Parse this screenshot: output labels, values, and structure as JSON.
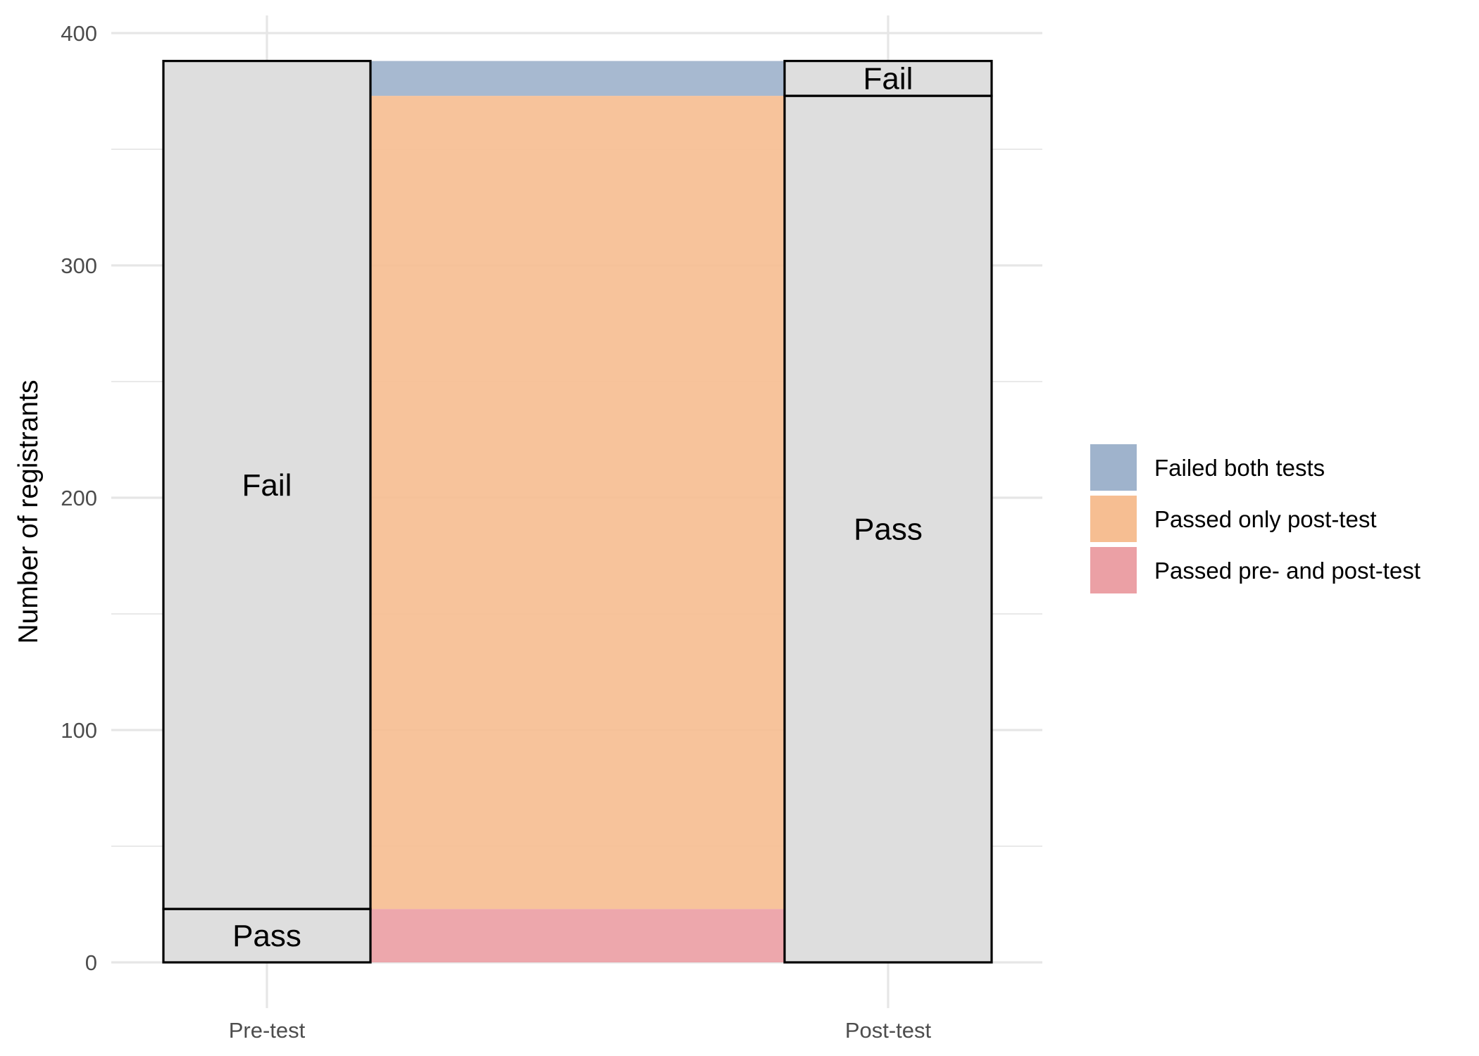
{
  "chart_data": {
    "type": "alluvial",
    "title": "",
    "xlabel": "",
    "ylabel": "Number of registrants",
    "ylim": [
      0,
      400
    ],
    "yticks": [
      0,
      100,
      200,
      300,
      400
    ],
    "grid": true,
    "legend_position": "right",
    "axes": [
      "Pre-test",
      "Post-test"
    ],
    "strata": [
      {
        "axis": "Pre-test",
        "label": "Pass",
        "value": 23
      },
      {
        "axis": "Pre-test",
        "label": "Fail",
        "value": 365
      },
      {
        "axis": "Post-test",
        "label": "Pass",
        "value": 373
      },
      {
        "axis": "Post-test",
        "label": "Fail",
        "value": 15
      }
    ],
    "flows": [
      {
        "name": "Passed pre- and post-test",
        "from": "Pass",
        "to": "Pass",
        "value": 23,
        "color": "#eba0a5"
      },
      {
        "name": "Passed only post-test",
        "from": "Fail",
        "to": "Pass",
        "value": 350,
        "color": "#f6be92"
      },
      {
        "name": "Failed both tests",
        "from": "Fail",
        "to": "Fail",
        "value": 15,
        "color": "#9fb3cc"
      }
    ],
    "legend": [
      "Failed both tests",
      "Passed only post-test",
      "Passed pre- and post-test"
    ],
    "stratum_fill": "#dedede"
  }
}
